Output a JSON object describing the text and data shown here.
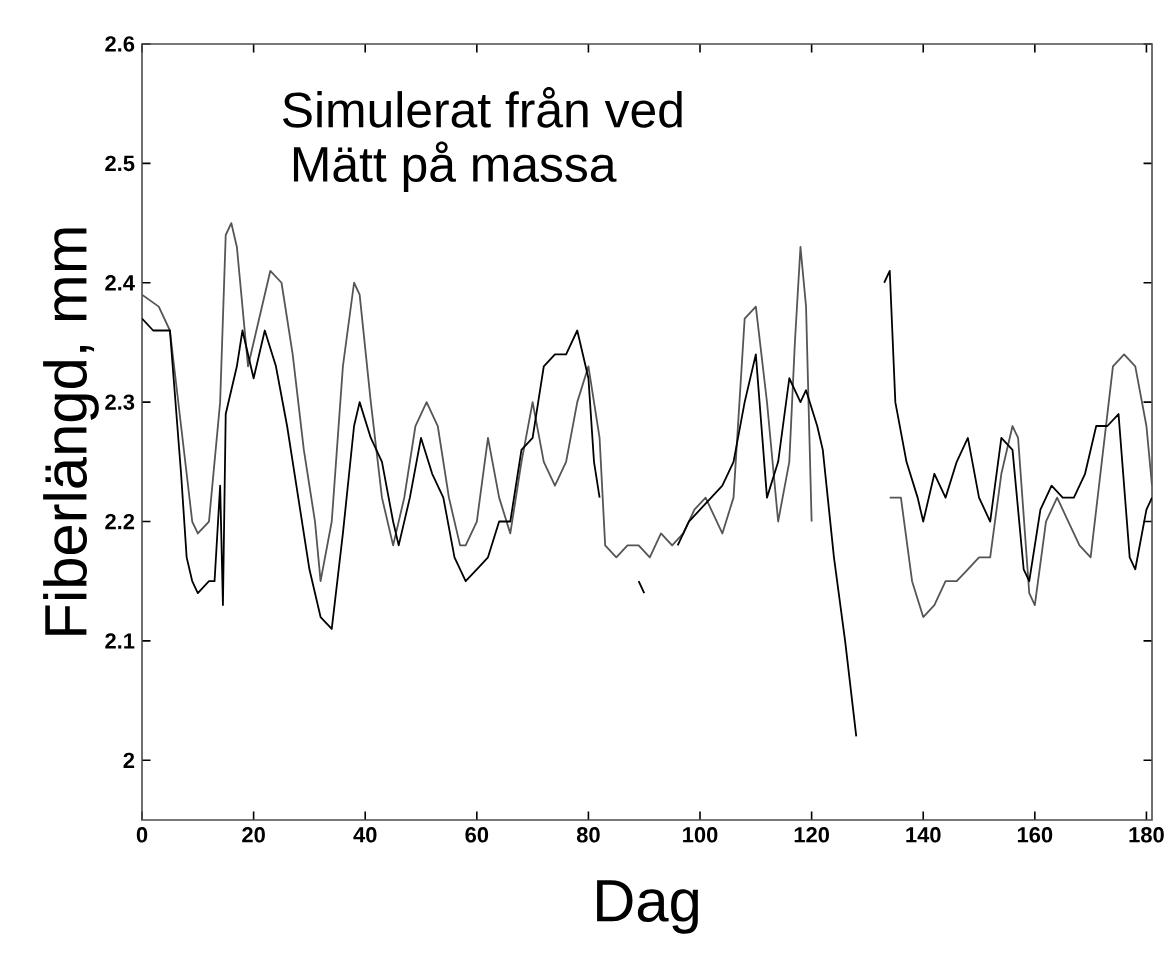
{
  "chart_data": {
    "type": "line",
    "xlabel": "Dag",
    "ylabel": "Fiberlängd, mm",
    "annotations": [
      "Simulerat från ved",
      "Mätt på massa"
    ],
    "xlim": [
      0,
      181
    ],
    "ylim": [
      1.95,
      2.6
    ],
    "xticks": [
      0,
      20,
      40,
      60,
      80,
      100,
      120,
      140,
      160,
      180
    ],
    "yticks": [
      2,
      2.1,
      2.2,
      2.3,
      2.4,
      2.5,
      2.6
    ],
    "grid": false,
    "marker": "none",
    "line_style": "solid",
    "series": [
      {
        "color": "#555555",
        "x": [
          0,
          3,
          5,
          7,
          9,
          10,
          12,
          14,
          15,
          16,
          17,
          19,
          21,
          23,
          25,
          27,
          29,
          31,
          32,
          34,
          36,
          38,
          39,
          41,
          43,
          45,
          47,
          49,
          51,
          53,
          55,
          57,
          58,
          60,
          62,
          64,
          66,
          68,
          70,
          72,
          74,
          76,
          78,
          80,
          82,
          83,
          85,
          87,
          89,
          91,
          93,
          95,
          97,
          99,
          101,
          104,
          106,
          108,
          110,
          112,
          114,
          116,
          117,
          118,
          119,
          120,
          121,
          132,
          134,
          136,
          138,
          140,
          142,
          144,
          146,
          148,
          150,
          152,
          154,
          156,
          157,
          159,
          160,
          162,
          164,
          166,
          168,
          170,
          172,
          174,
          176,
          178,
          180,
          181
        ],
        "values": [
          2.39,
          2.38,
          2.36,
          2.28,
          2.2,
          2.19,
          2.2,
          2.3,
          2.44,
          2.45,
          2.43,
          2.33,
          2.37,
          2.41,
          2.4,
          2.34,
          2.26,
          2.2,
          2.15,
          2.2,
          2.33,
          2.4,
          2.39,
          2.3,
          2.22,
          2.18,
          2.22,
          2.28,
          2.3,
          2.28,
          2.22,
          2.18,
          2.18,
          2.2,
          2.27,
          2.22,
          2.19,
          2.25,
          2.3,
          2.25,
          2.23,
          2.25,
          2.3,
          2.33,
          2.27,
          2.18,
          2.17,
          2.18,
          2.18,
          2.17,
          2.19,
          2.18,
          2.19,
          2.21,
          2.22,
          2.19,
          2.22,
          2.37,
          2.38,
          2.3,
          2.2,
          2.25,
          2.35,
          2.43,
          2.38,
          2.2,
          null,
          null,
          2.22,
          2.22,
          2.15,
          2.12,
          2.13,
          2.15,
          2.15,
          2.16,
          2.17,
          2.17,
          2.24,
          2.28,
          2.27,
          2.14,
          2.13,
          2.2,
          2.22,
          2.2,
          2.18,
          2.17,
          2.25,
          2.33,
          2.34,
          2.33,
          2.28,
          2.23
        ]
      },
      {
        "color": "#000000",
        "x": [
          0,
          2,
          4,
          5,
          7,
          8,
          9,
          10,
          12,
          13,
          14,
          14.5,
          15,
          17,
          18,
          20,
          22,
          24,
          26,
          28,
          30,
          32,
          34,
          36,
          38,
          39,
          41,
          43,
          45,
          46,
          48,
          50,
          52,
          54,
          56,
          58,
          60,
          62,
          64,
          66,
          68,
          70,
          72,
          74,
          76,
          78,
          80,
          81,
          82,
          83,
          88,
          89,
          90,
          91,
          95,
          96,
          98,
          100,
          102,
          104,
          106,
          108,
          110,
          112,
          114,
          116,
          118,
          119,
          121,
          122,
          124,
          126,
          128,
          130,
          132,
          133,
          134,
          135,
          137,
          139,
          140,
          142,
          144,
          146,
          148,
          150,
          152,
          154,
          156,
          158,
          159,
          161,
          163,
          165,
          167,
          169,
          171,
          173,
          175,
          177,
          178,
          180,
          181
        ],
        "values": [
          2.37,
          2.36,
          2.36,
          2.36,
          2.24,
          2.17,
          2.15,
          2.14,
          2.15,
          2.15,
          2.23,
          2.13,
          2.29,
          2.33,
          2.36,
          2.32,
          2.36,
          2.33,
          2.28,
          2.22,
          2.16,
          2.12,
          2.11,
          2.19,
          2.28,
          2.3,
          2.27,
          2.25,
          2.2,
          2.18,
          2.22,
          2.27,
          2.24,
          2.22,
          2.17,
          2.15,
          2.16,
          2.17,
          2.2,
          2.2,
          2.26,
          2.27,
          2.33,
          2.34,
          2.34,
          2.36,
          2.32,
          2.25,
          2.22,
          null,
          null,
          2.15,
          2.14,
          null,
          null,
          2.18,
          2.2,
          2.21,
          2.22,
          2.23,
          2.25,
          2.3,
          2.34,
          2.22,
          2.25,
          2.32,
          2.3,
          2.31,
          2.28,
          2.26,
          2.17,
          2.1,
          2.02,
          null,
          null,
          2.4,
          2.41,
          2.3,
          2.25,
          2.22,
          2.2,
          2.24,
          2.22,
          2.25,
          2.27,
          2.22,
          2.2,
          2.27,
          2.26,
          2.16,
          2.15,
          2.21,
          2.23,
          2.22,
          2.22,
          2.24,
          2.28,
          2.28,
          2.29,
          2.17,
          2.16,
          2.21,
          2.22
        ]
      }
    ]
  }
}
